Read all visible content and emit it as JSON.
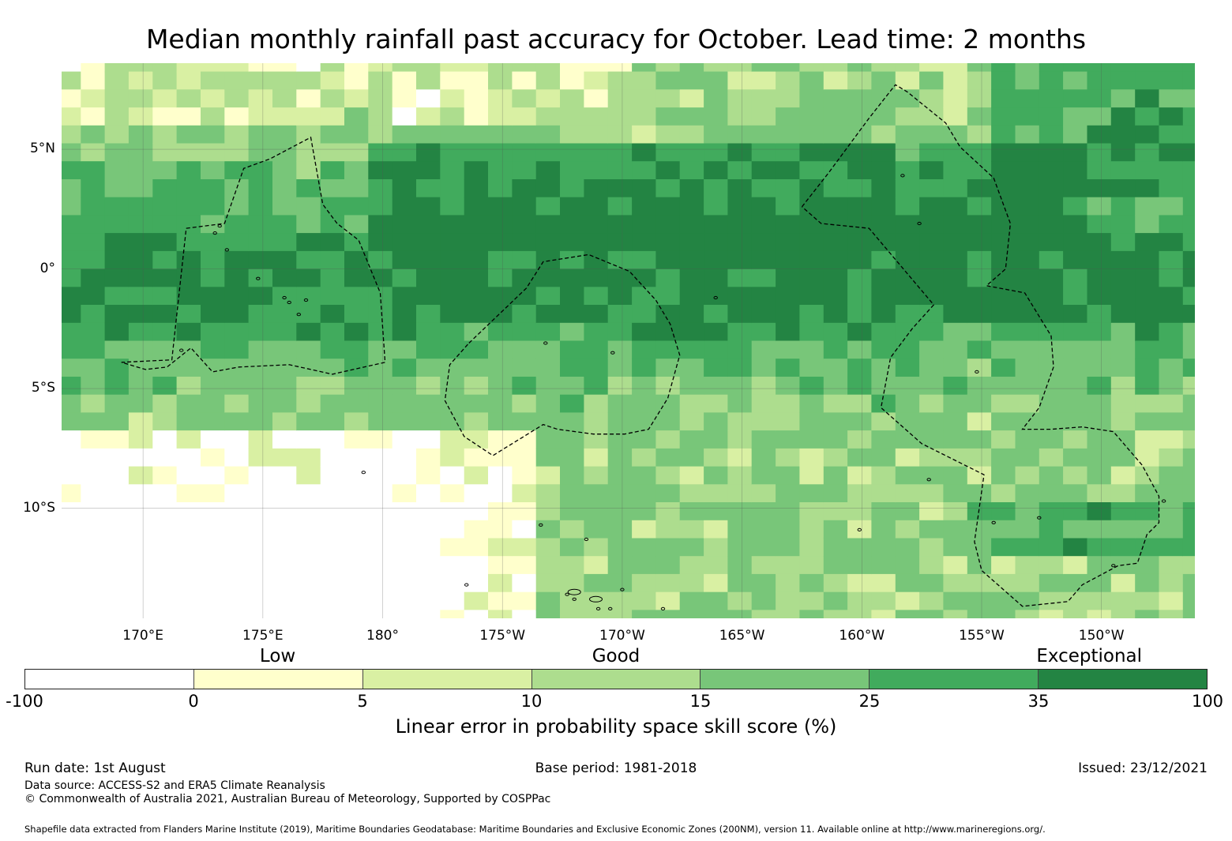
{
  "title": "Median monthly rainfall past accuracy for October. Lead time: 2 months",
  "map": {
    "lat_range": [
      -14.6,
      8.6
    ],
    "lon_range": [
      166.6,
      213.9
    ],
    "lat_labels": [
      {
        "lat": 5,
        "text": "5°N"
      },
      {
        "lat": 0,
        "text": "0°"
      },
      {
        "lat": -5,
        "text": "5°S"
      },
      {
        "lat": -10,
        "text": "10°S"
      }
    ],
    "lon_labels": [
      {
        "lon": 170,
        "text": "170°E"
      },
      {
        "lon": 175,
        "text": "175°E"
      },
      {
        "lon": 180,
        "text": "180°"
      },
      {
        "lon": 185,
        "text": "175°W"
      },
      {
        "lon": 190,
        "text": "170°W"
      },
      {
        "lon": 195,
        "text": "165°W"
      },
      {
        "lon": 200,
        "text": "160°W"
      },
      {
        "lon": 205,
        "text": "155°W"
      },
      {
        "lon": 210,
        "text": "150°W"
      }
    ],
    "eez_boundaries": [
      [
        [
          171.8,
          1.7
        ],
        [
          173.4,
          1.9
        ],
        [
          174.2,
          4.2
        ],
        [
          175.3,
          4.6
        ],
        [
          177.0,
          5.5
        ],
        [
          177.5,
          2.7
        ],
        [
          178.1,
          1.9
        ],
        [
          179.0,
          1.2
        ],
        [
          179.9,
          -1.0
        ],
        [
          180.1,
          -3.9
        ],
        [
          177.9,
          -4.4
        ],
        [
          176.1,
          -4.0
        ],
        [
          174.0,
          -4.1
        ],
        [
          172.9,
          -4.3
        ],
        [
          172.0,
          -3.3
        ],
        [
          171.0,
          -4.1
        ],
        [
          170.1,
          -4.2
        ],
        [
          169.1,
          -3.9
        ],
        [
          171.2,
          -3.8
        ],
        [
          171.8,
          1.7
        ]
      ],
      [
        [
          183.6,
          -3.1
        ],
        [
          186.0,
          -0.8
        ],
        [
          186.7,
          0.3
        ],
        [
          188.6,
          0.6
        ],
        [
          190.3,
          -0.1
        ],
        [
          191.4,
          -1.3
        ],
        [
          192.0,
          -2.3
        ],
        [
          192.4,
          -3.6
        ],
        [
          191.9,
          -5.4
        ],
        [
          191.1,
          -6.7
        ],
        [
          190.1,
          -6.9
        ],
        [
          188.8,
          -6.9
        ],
        [
          187.3,
          -6.7
        ],
        [
          186.7,
          -6.5
        ],
        [
          184.6,
          -7.8
        ],
        [
          183.4,
          -7.0
        ],
        [
          182.6,
          -5.5
        ],
        [
          182.8,
          -4.0
        ],
        [
          183.6,
          -3.1
        ]
      ],
      [
        [
          197.5,
          2.6
        ],
        [
          198.6,
          4.0
        ],
        [
          200.3,
          6.3
        ],
        [
          201.4,
          7.7
        ],
        [
          201.9,
          7.4
        ],
        [
          203.5,
          6.1
        ],
        [
          204.1,
          5.1
        ],
        [
          205.5,
          3.8
        ],
        [
          206.2,
          1.9
        ],
        [
          206.0,
          0.0
        ],
        [
          205.2,
          -0.7
        ],
        [
          206.8,
          -1.0
        ],
        [
          207.9,
          -2.8
        ],
        [
          208.0,
          -4.1
        ],
        [
          207.4,
          -5.8
        ],
        [
          206.7,
          -6.7
        ],
        [
          207.9,
          -6.7
        ],
        [
          209.2,
          -6.6
        ],
        [
          210.5,
          -6.8
        ],
        [
          211.7,
          -8.2
        ],
        [
          212.4,
          -9.5
        ],
        [
          212.4,
          -10.6
        ],
        [
          211.9,
          -11.1
        ],
        [
          211.5,
          -12.3
        ],
        [
          210.7,
          -12.4
        ],
        [
          209.2,
          -13.2
        ],
        [
          208.6,
          -13.9
        ],
        [
          206.7,
          -14.1
        ],
        [
          205.0,
          -12.6
        ],
        [
          204.7,
          -11.4
        ],
        [
          205.1,
          -8.6
        ],
        [
          202.5,
          -7.3
        ],
        [
          200.8,
          -5.8
        ],
        [
          201.2,
          -3.7
        ],
        [
          202.1,
          -2.5
        ],
        [
          203.0,
          -1.5
        ],
        [
          200.3,
          1.7
        ],
        [
          198.3,
          1.9
        ],
        [
          197.5,
          2.6
        ]
      ]
    ],
    "islands": [
      [
        171.6,
        -3.4
      ],
      [
        173.0,
        1.5
      ],
      [
        173.2,
        1.8
      ],
      [
        173.5,
        0.8
      ],
      [
        174.8,
        -0.4
      ],
      [
        175.9,
        -1.2
      ],
      [
        176.1,
        -1.4
      ],
      [
        176.8,
        -1.3
      ],
      [
        176.5,
        -1.9
      ],
      [
        179.2,
        -8.5
      ],
      [
        183.5,
        -13.2
      ],
      [
        186.6,
        -10.7
      ],
      [
        187.7,
        -13.6
      ],
      [
        188.0,
        -13.8
      ],
      [
        188.5,
        -11.3
      ],
      [
        189.0,
        -14.2
      ],
      [
        189.5,
        -14.2
      ],
      [
        191.7,
        -14.2
      ],
      [
        193.9,
        -1.2
      ],
      [
        201.7,
        3.9
      ],
      [
        202.4,
        1.9
      ],
      [
        204.8,
        -4.3
      ],
      [
        205.5,
        -10.6
      ],
      [
        207.4,
        -10.4
      ],
      [
        210.5,
        -12.4
      ],
      [
        212.6,
        -9.7
      ],
      [
        202.8,
        -8.8
      ],
      [
        199.9,
        -10.9
      ],
      [
        190.0,
        -13.4
      ],
      [
        186.8,
        -3.1
      ],
      [
        189.6,
        -3.5
      ]
    ],
    "samoa": [
      [
        188.0,
        -13.5
      ],
      [
        188.9,
        -13.8
      ]
    ]
  },
  "axis_note": "",
  "colorbar": {
    "category_labels": [
      {
        "text": "Low",
        "pos": 0.214
      },
      {
        "text": "Good",
        "pos": 0.5
      },
      {
        "text": "Exceptional",
        "pos": 0.9
      }
    ],
    "bins": [
      {
        "from": "-100",
        "to": "0",
        "color": "#ffffff"
      },
      {
        "from": "0",
        "to": "5",
        "color": "#ffffcc"
      },
      {
        "from": "5",
        "to": "10",
        "color": "#d9f0a3"
      },
      {
        "from": "10",
        "to": "15",
        "color": "#addd8e"
      },
      {
        "from": "15",
        "to": "25",
        "color": "#78c679"
      },
      {
        "from": "25",
        "to": "35",
        "color": "#41ab5d"
      },
      {
        "from": "35",
        "to": "100",
        "color": "#238443"
      }
    ],
    "ticks": [
      "-100",
      "0",
      "5",
      "10",
      "15",
      "25",
      "35",
      "100"
    ],
    "label": "Linear error in probability space skill score (%)"
  },
  "footer": {
    "run_date": "Run date: 1st August",
    "base_period": "Base period: 1981-2018",
    "issued": "Issued: 23/12/2021",
    "data_source": "Data source: ACCESS-S2 and ERA5 Climate Reanalysis",
    "copyright": "© Commonwealth of Australia 2021, Australian Bureau of Meteorology, Supported by COSPPac",
    "shapefile": "Shapefile data extracted from Flanders Marine Institute (2019), Maritime Boundaries Geodatabase: Maritime Boundaries and Exclusive Economic Zones (200NM), version 11. Available online at http://www.marineregions.org/."
  }
}
